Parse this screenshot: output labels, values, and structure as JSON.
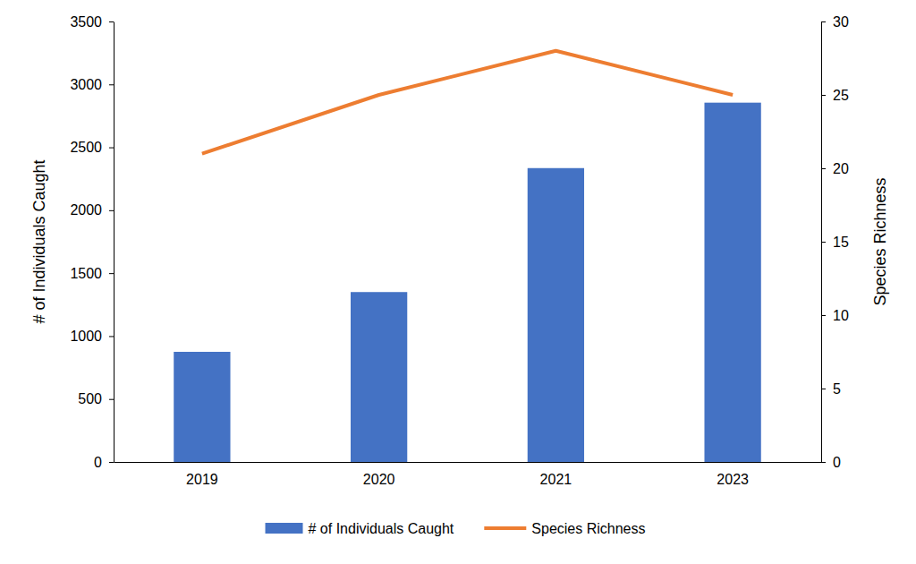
{
  "chart_data": {
    "type": "bar",
    "categories": [
      "2019",
      "2020",
      "2021",
      "2023"
    ],
    "series": [
      {
        "name": "# of Individuals Caught",
        "type": "bar",
        "color": "#4472c4",
        "values": [
          875,
          1350,
          2335,
          2855
        ]
      },
      {
        "name": "Species Richness",
        "type": "line",
        "color": "#ed7d31",
        "axis": "y2",
        "values": [
          21,
          25,
          28,
          25
        ]
      }
    ],
    "y_label": "# of Individuals Caught",
    "y2_label": "Species Richness",
    "ylim": [
      0,
      3500
    ],
    "yticks": [
      0,
      500,
      1000,
      1500,
      2000,
      2500,
      3000,
      3500
    ],
    "y2lim": [
      0,
      30
    ],
    "y2ticks": [
      0,
      5,
      10,
      15,
      20,
      25,
      30
    ],
    "legend": "bottom",
    "grid": false
  }
}
